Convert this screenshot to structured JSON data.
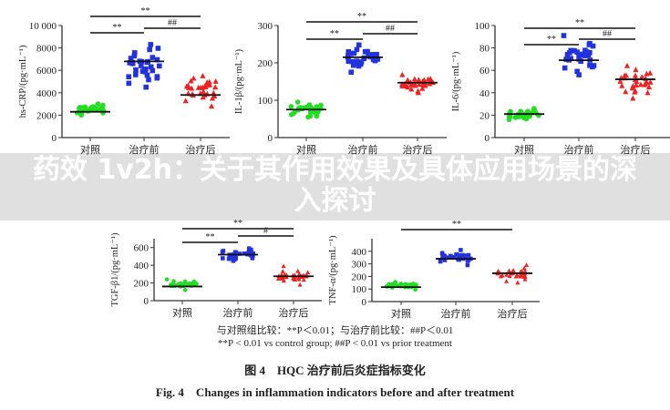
{
  "chart_data": [
    {
      "type": "scatter",
      "ylabel": "hs-CRP/(pg·mL⁻¹)",
      "ylim": [
        0,
        10000
      ],
      "yticks": [
        0,
        2000,
        4000,
        6000,
        8000,
        10000
      ],
      "ytick_labels": [
        "0",
        "2000",
        "4000",
        "6000",
        "8000",
        "10 000"
      ],
      "categories": [
        "对照",
        "治疗前",
        "治疗后"
      ],
      "groups": [
        {
          "mean": 2300,
          "min": 2000,
          "max": 3000,
          "color": "#22dd22",
          "marker": "circle"
        },
        {
          "mean": 6800,
          "min": 4500,
          "max": 8300,
          "color": "#2233dd",
          "marker": "square"
        },
        {
          "mean": 3800,
          "min": 2800,
          "max": 5500,
          "color": "#ee2222",
          "marker": "triangle"
        }
      ],
      "significance": [
        {
          "label": "**",
          "from": 0,
          "to": 2
        },
        {
          "label": "**",
          "from": 0,
          "to": 1
        },
        {
          "label": "##",
          "from": 1,
          "to": 2
        }
      ]
    },
    {
      "type": "scatter",
      "ylabel": "IL-1β/(pg·mL⁻¹)",
      "ylim": [
        0,
        300
      ],
      "yticks": [
        0,
        100,
        200,
        300
      ],
      "ytick_labels": [
        "0",
        "100",
        "200",
        "300"
      ],
      "categories": [
        "对照",
        "治疗前",
        "治疗后"
      ],
      "groups": [
        {
          "mean": 75,
          "min": 55,
          "max": 95,
          "color": "#22dd22",
          "marker": "circle"
        },
        {
          "mean": 215,
          "min": 175,
          "max": 248,
          "color": "#2233dd",
          "marker": "square"
        },
        {
          "mean": 147,
          "min": 120,
          "max": 168,
          "color": "#ee2222",
          "marker": "triangle"
        }
      ],
      "significance": [
        {
          "label": "**",
          "from": 0,
          "to": 2
        },
        {
          "label": "**",
          "from": 0,
          "to": 1
        },
        {
          "label": "##",
          "from": 1,
          "to": 2
        }
      ]
    },
    {
      "type": "scatter",
      "ylabel": "IL-6/(pg·mL⁻¹)",
      "ylim": [
        0,
        100
      ],
      "yticks": [
        0,
        20,
        40,
        60,
        80,
        100
      ],
      "ytick_labels": [
        "0",
        "20",
        "40",
        "60",
        "80",
        "100"
      ],
      "categories": [
        "对照",
        "治疗前",
        "治疗后"
      ],
      "groups": [
        {
          "mean": 21,
          "min": 16,
          "max": 26,
          "color": "#22dd22",
          "marker": "circle"
        },
        {
          "mean": 69,
          "min": 56,
          "max": 91,
          "color": "#2233dd",
          "marker": "square"
        },
        {
          "mean": 52,
          "min": 35,
          "max": 64,
          "color": "#ee2222",
          "marker": "triangle"
        }
      ],
      "significance": [
        {
          "label": "**",
          "from": 0,
          "to": 2
        },
        {
          "label": "**",
          "from": 0,
          "to": 1
        },
        {
          "label": "##",
          "from": 1,
          "to": 2
        }
      ]
    },
    {
      "type": "scatter",
      "ylabel": "TGF-β1/(pg·mL⁻¹)",
      "ylim": [
        0,
        700
      ],
      "yticks": [
        0,
        200,
        400,
        600
      ],
      "ytick_labels": [
        "0",
        "200",
        "400",
        "600"
      ],
      "categories": [
        "对照",
        "治疗前",
        "治疗后"
      ],
      "groups": [
        {
          "mean": 160,
          "min": 120,
          "max": 240,
          "color": "#22dd22",
          "marker": "circle"
        },
        {
          "mean": 520,
          "min": 450,
          "max": 590,
          "color": "#2233dd",
          "marker": "square"
        },
        {
          "mean": 275,
          "min": 180,
          "max": 390,
          "color": "#ee2222",
          "marker": "triangle"
        }
      ],
      "significance": [
        {
          "label": "**",
          "from": 0,
          "to": 2
        },
        {
          "label": "**",
          "from": 0,
          "to": 1
        },
        {
          "label": "#",
          "from": 1,
          "to": 2
        }
      ]
    },
    {
      "type": "scatter",
      "ylabel": "TNF-α/(pg·mL⁻¹)",
      "ylim": [
        0,
        500
      ],
      "yticks": [
        0,
        100,
        200,
        300,
        400
      ],
      "ytick_labels": [
        "0",
        "100",
        "200",
        "300",
        "400"
      ],
      "categories": [
        "对照",
        "治疗前",
        "治疗后"
      ],
      "groups": [
        {
          "mean": 115,
          "min": 95,
          "max": 155,
          "color": "#22dd22",
          "marker": "circle"
        },
        {
          "mean": 340,
          "min": 290,
          "max": 410,
          "color": "#2233dd",
          "marker": "square"
        },
        {
          "mean": 225,
          "min": 150,
          "max": 290,
          "color": "#ee2222",
          "marker": "triangle"
        }
      ],
      "significance": [
        {
          "label": "**",
          "from": 0,
          "to": 2
        }
      ]
    }
  ],
  "caption": {
    "note_cn": "与对照组比较：**P＜0.01；与治疗前比较：##P＜0.01",
    "note_en": "**P < 0.01 vs control group; ##P < 0.01 vs prior treatment",
    "title_cn": "图 4　HQC 治疗前后炎症指标变化",
    "title_en": "Fig. 4　Changes in inflammation indicators before and after treatment"
  },
  "banner": {
    "text": "药效 1v2h：关于其作用效果及具体应用场景的深入探讨",
    "background": "#cdcdcd",
    "color": "#ffffff"
  }
}
